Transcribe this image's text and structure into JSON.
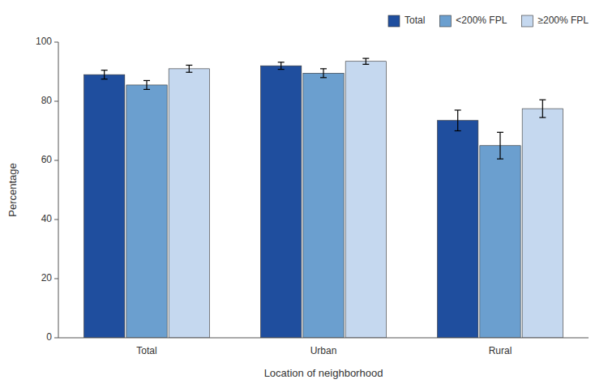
{
  "chart_data": {
    "type": "bar",
    "xlabel": "Location of neighborhood",
    "ylabel": "Percentage",
    "categories": [
      "Total",
      "Urban",
      "Rural"
    ],
    "series": [
      {
        "name": "Total",
        "color": "#1f4e9e",
        "values": [
          89.0,
          92.0,
          73.5
        ],
        "errors": [
          1.5,
          1.2,
          3.5
        ]
      },
      {
        "name": "<200% FPL",
        "color": "#6b9fcf",
        "values": [
          85.5,
          89.5,
          65.0
        ],
        "errors": [
          1.5,
          1.5,
          4.5
        ]
      },
      {
        "name": "≥200% FPL",
        "color": "#c5d8ef",
        "values": [
          91.0,
          93.5,
          77.5
        ],
        "errors": [
          1.2,
          1.0,
          3.0
        ]
      }
    ],
    "ylim": [
      0,
      100
    ],
    "yticks": [
      0,
      20,
      40,
      60,
      80,
      100
    ],
    "grid": false,
    "legend": "top-right"
  }
}
